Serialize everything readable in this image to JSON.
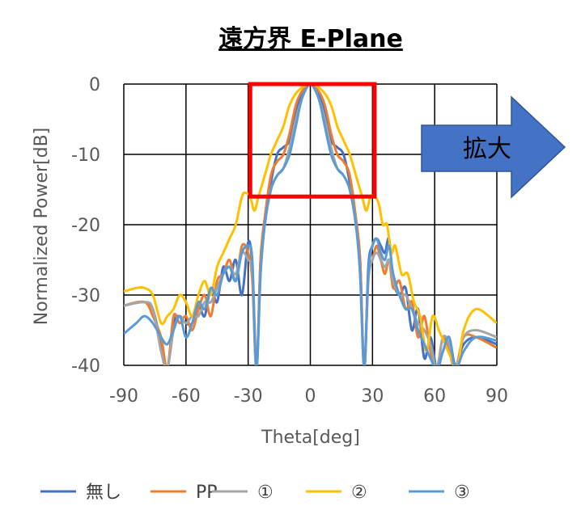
{
  "chart_data": {
    "type": "line",
    "title": "遠方界 E-Plane",
    "xlabel": "Theta[deg]",
    "ylabel": "Normalized Power[dB]",
    "xlim": [
      -90,
      90
    ],
    "ylim": [
      -40,
      0
    ],
    "xticks": [
      -90,
      -60,
      -30,
      0,
      30,
      60,
      90
    ],
    "yticks": [
      0,
      -10,
      -20,
      -30,
      -40
    ],
    "grid": true,
    "legend": "bottom",
    "highlight_box": {
      "x": [
        -29,
        31
      ],
      "y": [
        -16,
        0
      ],
      "color": "#ff0000"
    },
    "arrow_label": "拡大",
    "series": [
      {
        "name": "無し",
        "color": "#4472c4",
        "points": [
          [
            -90,
            -31.5
          ],
          [
            -80,
            -31
          ],
          [
            -76,
            -32
          ],
          [
            -72,
            -37
          ],
          [
            -69,
            -40.5
          ],
          [
            -66,
            -34
          ],
          [
            -63,
            -33
          ],
          [
            -60,
            -34
          ],
          [
            -57,
            -34
          ],
          [
            -54,
            -31.5
          ],
          [
            -51,
            -33
          ],
          [
            -48,
            -29
          ],
          [
            -45,
            -31
          ],
          [
            -42,
            -26
          ],
          [
            -39,
            -28
          ],
          [
            -36,
            -25
          ],
          [
            -33,
            -30
          ],
          [
            -30,
            -22.5
          ],
          [
            -28,
            -26
          ],
          [
            -26,
            -40.5
          ],
          [
            -24,
            -25
          ],
          [
            -22,
            -20
          ],
          [
            -19,
            -14
          ],
          [
            -16,
            -10
          ],
          [
            -13,
            -9
          ],
          [
            -10,
            -8
          ],
          [
            -7,
            -4
          ],
          [
            -4,
            -1.5
          ],
          [
            0,
            0
          ],
          [
            4,
            -1.5
          ],
          [
            7,
            -4
          ],
          [
            10,
            -8
          ],
          [
            13,
            -9
          ],
          [
            16,
            -10
          ],
          [
            19,
            -14
          ],
          [
            22,
            -20
          ],
          [
            24,
            -25
          ],
          [
            26,
            -40.5
          ],
          [
            28,
            -26
          ],
          [
            30,
            -23
          ],
          [
            32,
            -22
          ],
          [
            34,
            -23
          ],
          [
            36,
            -24
          ],
          [
            38,
            -22
          ],
          [
            40,
            -28
          ],
          [
            43,
            -30
          ],
          [
            46,
            -29
          ],
          [
            49,
            -35
          ],
          [
            52,
            -32
          ],
          [
            55,
            -39
          ],
          [
            58,
            -36
          ],
          [
            61,
            -40.5
          ],
          [
            64,
            -38
          ],
          [
            67,
            -36
          ],
          [
            70,
            -40
          ],
          [
            74,
            -37
          ],
          [
            80,
            -36
          ],
          [
            90,
            -37
          ]
        ]
      },
      {
        "name": "PP",
        "color": "#ed7d31",
        "points": [
          [
            -90,
            -31.5
          ],
          [
            -80,
            -31
          ],
          [
            -76,
            -33
          ],
          [
            -72,
            -36
          ],
          [
            -69,
            -40.5
          ],
          [
            -66,
            -33
          ],
          [
            -63,
            -34
          ],
          [
            -60,
            -33
          ],
          [
            -57,
            -35
          ],
          [
            -54,
            -32
          ],
          [
            -51,
            -30
          ],
          [
            -48,
            -33
          ],
          [
            -45,
            -28
          ],
          [
            -42,
            -27
          ],
          [
            -39,
            -25
          ],
          [
            -36,
            -28
          ],
          [
            -33,
            -23
          ],
          [
            -30,
            -24
          ],
          [
            -28,
            -28
          ],
          [
            -26,
            -40.5
          ],
          [
            -24,
            -25
          ],
          [
            -22,
            -19
          ],
          [
            -19,
            -13
          ],
          [
            -16,
            -11
          ],
          [
            -13,
            -10
          ],
          [
            -10,
            -7
          ],
          [
            -7,
            -3
          ],
          [
            -4,
            -1
          ],
          [
            0,
            0
          ],
          [
            4,
            -1
          ],
          [
            7,
            -3
          ],
          [
            10,
            -7
          ],
          [
            13,
            -10
          ],
          [
            16,
            -11
          ],
          [
            19,
            -13
          ],
          [
            22,
            -19
          ],
          [
            24,
            -25
          ],
          [
            26,
            -40.5
          ],
          [
            28,
            -27
          ],
          [
            30,
            -25
          ],
          [
            32,
            -23
          ],
          [
            34,
            -25
          ],
          [
            36,
            -27
          ],
          [
            38,
            -25
          ],
          [
            40,
            -29
          ],
          [
            43,
            -28
          ],
          [
            46,
            -32
          ],
          [
            49,
            -31
          ],
          [
            52,
            -36
          ],
          [
            55,
            -33
          ],
          [
            58,
            -38
          ],
          [
            61,
            -40.5
          ],
          [
            64,
            -36
          ],
          [
            67,
            -38
          ],
          [
            70,
            -40.5
          ],
          [
            74,
            -36
          ],
          [
            80,
            -36
          ],
          [
            90,
            -37.5
          ]
        ]
      },
      {
        "name": "①",
        "color": "#a5a5a5",
        "points": [
          [
            -90,
            -31.5
          ],
          [
            -80,
            -31
          ],
          [
            -76,
            -32
          ],
          [
            -72,
            -38
          ],
          [
            -69,
            -40.5
          ],
          [
            -66,
            -35
          ],
          [
            -63,
            -33
          ],
          [
            -60,
            -34
          ],
          [
            -57,
            -33
          ],
          [
            -54,
            -33
          ],
          [
            -51,
            -31
          ],
          [
            -48,
            -31
          ],
          [
            -45,
            -29
          ],
          [
            -42,
            -27
          ],
          [
            -39,
            -26
          ],
          [
            -36,
            -27
          ],
          [
            -33,
            -24
          ],
          [
            -30,
            -25
          ],
          [
            -28,
            -27
          ],
          [
            -26,
            -40.5
          ],
          [
            -24,
            -27
          ],
          [
            -22,
            -20
          ],
          [
            -19,
            -15
          ],
          [
            -16,
            -13
          ],
          [
            -13,
            -12
          ],
          [
            -10,
            -9
          ],
          [
            -7,
            -5
          ],
          [
            -4,
            -2
          ],
          [
            0,
            0
          ],
          [
            4,
            -2
          ],
          [
            7,
            -5
          ],
          [
            10,
            -9
          ],
          [
            13,
            -12
          ],
          [
            16,
            -13
          ],
          [
            19,
            -15
          ],
          [
            22,
            -20
          ],
          [
            24,
            -27
          ],
          [
            26,
            -40.5
          ],
          [
            28,
            -28
          ],
          [
            30,
            -25
          ],
          [
            32,
            -24
          ],
          [
            34,
            -25
          ],
          [
            36,
            -26
          ],
          [
            38,
            -25
          ],
          [
            40,
            -28
          ],
          [
            43,
            -30
          ],
          [
            46,
            -30
          ],
          [
            49,
            -32
          ],
          [
            52,
            -34
          ],
          [
            55,
            -35
          ],
          [
            58,
            -37
          ],
          [
            61,
            -40.5
          ],
          [
            64,
            -36
          ],
          [
            67,
            -37
          ],
          [
            70,
            -40.5
          ],
          [
            74,
            -36
          ],
          [
            80,
            -35
          ],
          [
            90,
            -36
          ]
        ]
      },
      {
        "name": "②",
        "color": "#ffc000",
        "points": [
          [
            -90,
            -29.5
          ],
          [
            -84,
            -29
          ],
          [
            -80,
            -29
          ],
          [
            -76,
            -30
          ],
          [
            -72,
            -34
          ],
          [
            -69,
            -33
          ],
          [
            -66,
            -32
          ],
          [
            -63,
            -30
          ],
          [
            -60,
            -31
          ],
          [
            -57,
            -33
          ],
          [
            -54,
            -30
          ],
          [
            -51,
            -28
          ],
          [
            -48,
            -30
          ],
          [
            -45,
            -26
          ],
          [
            -42,
            -24
          ],
          [
            -39,
            -22
          ],
          [
            -36,
            -20
          ],
          [
            -33,
            -16
          ],
          [
            -31,
            -15.5
          ],
          [
            -29,
            -16
          ],
          [
            -27,
            -18
          ],
          [
            -25,
            -16
          ],
          [
            -22,
            -13
          ],
          [
            -19,
            -10
          ],
          [
            -16,
            -8
          ],
          [
            -13,
            -6
          ],
          [
            -10,
            -3
          ],
          [
            -6,
            -1
          ],
          [
            0,
            0
          ],
          [
            6,
            -1
          ],
          [
            10,
            -3
          ],
          [
            13,
            -6
          ],
          [
            16,
            -8
          ],
          [
            19,
            -10
          ],
          [
            22,
            -13
          ],
          [
            25,
            -16
          ],
          [
            27,
            -18
          ],
          [
            29,
            -16
          ],
          [
            31,
            -16
          ],
          [
            33,
            -17
          ],
          [
            35,
            -20
          ],
          [
            37,
            -20
          ],
          [
            39,
            -24
          ],
          [
            41,
            -23
          ],
          [
            44,
            -27
          ],
          [
            47,
            -27
          ],
          [
            50,
            -31
          ],
          [
            53,
            -33
          ],
          [
            56,
            -38
          ],
          [
            59,
            -33
          ],
          [
            62,
            -35
          ],
          [
            65,
            -37
          ],
          [
            68,
            -39
          ],
          [
            71,
            -40.5
          ],
          [
            74,
            -35
          ],
          [
            80,
            -32
          ],
          [
            90,
            -34
          ]
        ]
      },
      {
        "name": "③",
        "color": "#5b9bd5",
        "points": [
          [
            -90,
            -35.5
          ],
          [
            -84,
            -34
          ],
          [
            -80,
            -33
          ],
          [
            -76,
            -34
          ],
          [
            -72,
            -36
          ],
          [
            -69,
            -37
          ],
          [
            -66,
            -35
          ],
          [
            -63,
            -33
          ],
          [
            -60,
            -36
          ],
          [
            -57,
            -34
          ],
          [
            -54,
            -31
          ],
          [
            -51,
            -32
          ],
          [
            -48,
            -29
          ],
          [
            -45,
            -30
          ],
          [
            -42,
            -27
          ],
          [
            -39,
            -26
          ],
          [
            -36,
            -28
          ],
          [
            -33,
            -24
          ],
          [
            -30,
            -23
          ],
          [
            -28,
            -25
          ],
          [
            -26,
            -40.5
          ],
          [
            -24,
            -27
          ],
          [
            -22,
            -20
          ],
          [
            -19,
            -15
          ],
          [
            -16,
            -13
          ],
          [
            -13,
            -12
          ],
          [
            -10,
            -10
          ],
          [
            -7,
            -6
          ],
          [
            -4,
            -2
          ],
          [
            0,
            0
          ],
          [
            4,
            -2
          ],
          [
            7,
            -6
          ],
          [
            10,
            -10
          ],
          [
            13,
            -12
          ],
          [
            16,
            -13
          ],
          [
            19,
            -15
          ],
          [
            22,
            -20
          ],
          [
            24,
            -27
          ],
          [
            26,
            -40.5
          ],
          [
            28,
            -27
          ],
          [
            30,
            -23
          ],
          [
            32,
            -22
          ],
          [
            34,
            -24
          ],
          [
            36,
            -25
          ],
          [
            38,
            -23
          ],
          [
            40,
            -27
          ],
          [
            43,
            -30
          ],
          [
            46,
            -32
          ],
          [
            49,
            -32
          ],
          [
            52,
            -35
          ],
          [
            55,
            -37
          ],
          [
            58,
            -39
          ],
          [
            61,
            -40.5
          ],
          [
            64,
            -38
          ],
          [
            67,
            -36
          ],
          [
            70,
            -40.5
          ],
          [
            74,
            -38
          ],
          [
            80,
            -36
          ],
          [
            90,
            -36.5
          ]
        ]
      }
    ]
  }
}
